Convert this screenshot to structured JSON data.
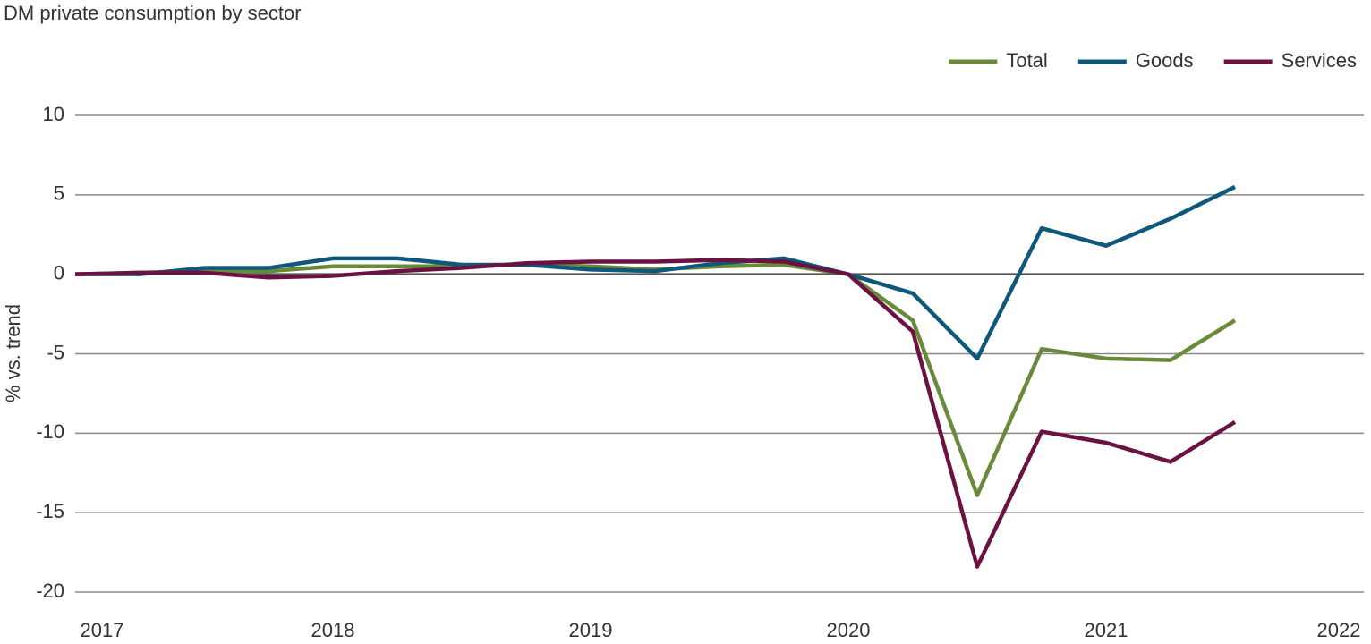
{
  "chart_data": {
    "type": "line",
    "title": "DM private consumption by sector",
    "y_label": "% vs. trend",
    "x": [
      2017,
      2017.25,
      2017.5,
      2017.75,
      2018,
      2018.25,
      2018.5,
      2018.75,
      2019,
      2019.25,
      2019.5,
      2019.75,
      2020,
      2020.25,
      2020.5,
      2020.75,
      2021,
      2021.25,
      2021.5
    ],
    "series": [
      {
        "name": "Total",
        "color": "#6a8a3b",
        "values": [
          0,
          0.1,
          0.2,
          0.2,
          0.5,
          0.5,
          0.5,
          0.6,
          0.5,
          0.3,
          0.5,
          0.6,
          0,
          -2.9,
          -13.9,
          -4.7,
          -5.3,
          -5.4,
          -2.9
        ]
      },
      {
        "name": "Goods",
        "color": "#0e587c",
        "values": [
          0,
          0,
          0.4,
          0.4,
          1.0,
          1.0,
          0.6,
          0.6,
          0.3,
          0.2,
          0.7,
          1.0,
          0,
          -1.2,
          -5.3,
          2.9,
          1.8,
          3.5,
          5.5
        ]
      },
      {
        "name": "Services",
        "color": "#6b1242",
        "values": [
          0,
          0.1,
          0.1,
          -0.2,
          -0.1,
          0.2,
          0.4,
          0.7,
          0.8,
          0.8,
          0.9,
          0.8,
          0,
          -3.6,
          -18.4,
          -9.9,
          -10.6,
          -11.8,
          -9.3
        ]
      }
    ],
    "xlim": [
      2017,
      2022
    ],
    "xticks": [
      2017,
      2018,
      2019,
      2020,
      2021,
      2022
    ],
    "ylim": [
      -20,
      10
    ],
    "yticks": [
      -20,
      -15,
      -10,
      -5,
      0,
      5,
      10
    ],
    "grid": true,
    "legend": "top-right"
  }
}
